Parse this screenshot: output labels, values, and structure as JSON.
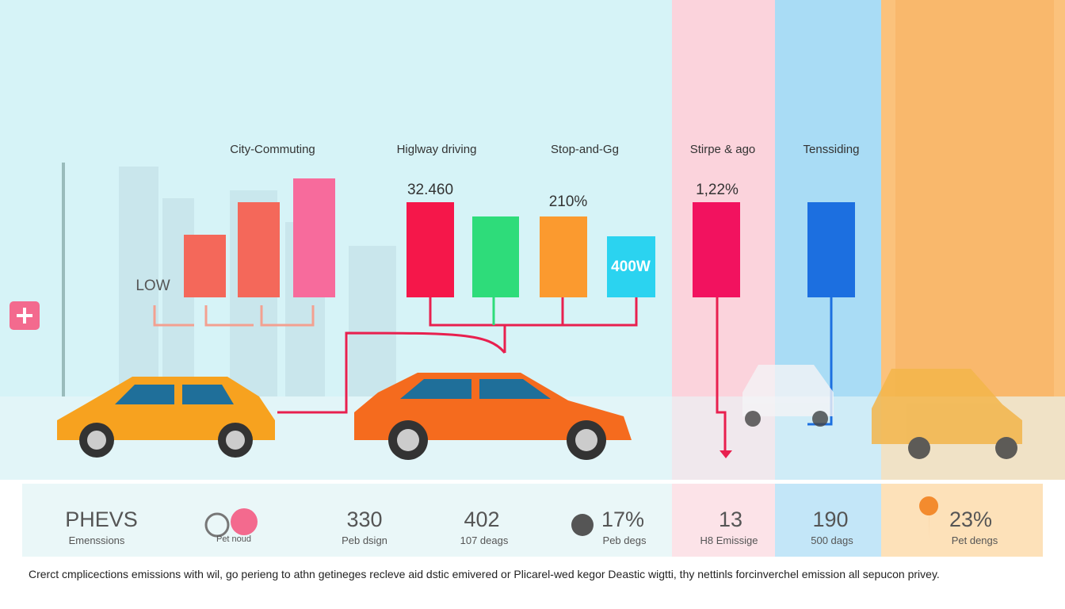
{
  "sections": [
    {
      "label": "City-Commuting"
    },
    {
      "label": "Higlway driving"
    },
    {
      "label": "Stop-and-Gg"
    },
    {
      "label": "Stirpe & ago"
    },
    {
      "label": "Tenssiding"
    }
  ],
  "annotations": {
    "low": "LOW",
    "highway": "32.460",
    "stop": "210%",
    "watt": "400W",
    "stripe": "1,22%"
  },
  "stats": [
    {
      "value": "PHEVS",
      "caption": "Emenssions"
    },
    {
      "caption": "Pet noud"
    },
    {
      "value": "330",
      "caption": "Peb dsign"
    },
    {
      "value": "402",
      "caption": "107 deags"
    },
    {
      "value": "17%",
      "caption": "Peb degs"
    },
    {
      "value": "13",
      "caption": "H8 Emissige"
    },
    {
      "value": "190",
      "caption": "500 dags"
    },
    {
      "value": "23%",
      "caption": "Pet dengs"
    }
  ],
  "footer": "Crerct cmplicections emissions with wil, go perieng to athn getineges recleve aid dstic emivered or Plicarel-wed kegor Deastic wigtti, thy nettinls forcinverchel emission all sepucon privey."
}
